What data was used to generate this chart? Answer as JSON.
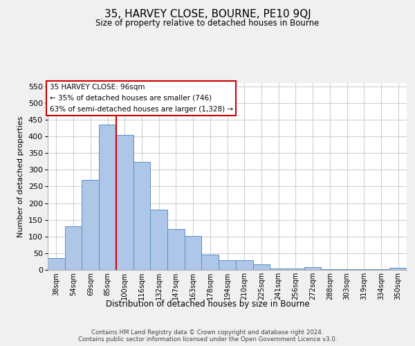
{
  "title": "35, HARVEY CLOSE, BOURNE, PE10 9QJ",
  "subtitle": "Size of property relative to detached houses in Bourne",
  "xlabel": "Distribution of detached houses by size in Bourne",
  "ylabel": "Number of detached properties",
  "categories": [
    "38sqm",
    "54sqm",
    "69sqm",
    "85sqm",
    "100sqm",
    "116sqm",
    "132sqm",
    "147sqm",
    "163sqm",
    "178sqm",
    "194sqm",
    "210sqm",
    "225sqm",
    "241sqm",
    "256sqm",
    "272sqm",
    "288sqm",
    "303sqm",
    "319sqm",
    "334sqm",
    "350sqm"
  ],
  "values": [
    35,
    130,
    270,
    435,
    405,
    323,
    181,
    122,
    101,
    45,
    29,
    29,
    17,
    5,
    5,
    9,
    3,
    2,
    2,
    3,
    6
  ],
  "bar_color": "#aec6e8",
  "bar_edge_color": "#5a8fc0",
  "vline_color": "#cc0000",
  "annotation_text": "35 HARVEY CLOSE: 96sqm\n← 35% of detached houses are smaller (746)\n63% of semi-detached houses are larger (1,328) →",
  "annotation_box_color": "#ffffff",
  "annotation_box_edge": "#cc0000",
  "ylim": [
    0,
    560
  ],
  "yticks": [
    0,
    50,
    100,
    150,
    200,
    250,
    300,
    350,
    400,
    450,
    500,
    550
  ],
  "footer": "Contains HM Land Registry data © Crown copyright and database right 2024.\nContains public sector information licensed under the Open Government Licence v3.0.",
  "bg_color": "#f0f0f0",
  "plot_bg_color": "#ffffff",
  "grid_color": "#d0d0d0",
  "vline_bar_index": 3.5
}
